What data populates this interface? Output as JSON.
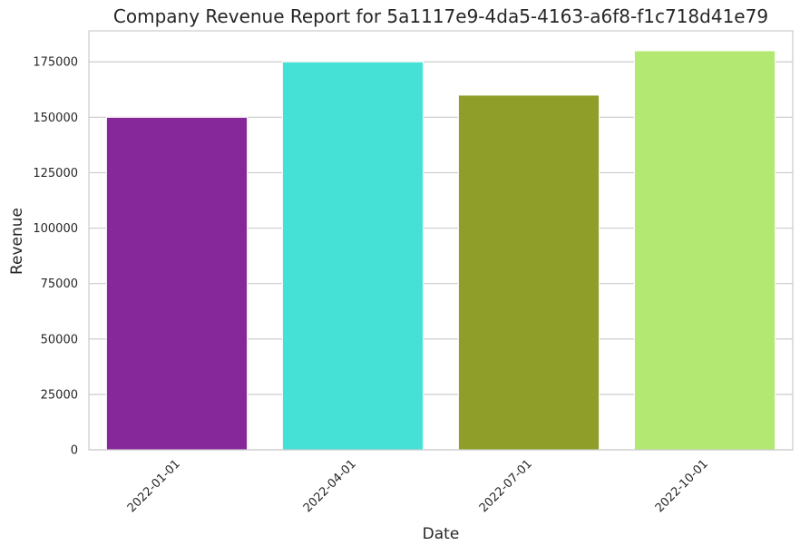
{
  "chart_data": {
    "type": "bar",
    "title": "Company Revenue Report for 5a1117e9-4da5-4163-a6f8-f1c718d41e79",
    "xlabel": "Date",
    "ylabel": "Revenue",
    "categories": [
      "2022-01-01",
      "2022-04-01",
      "2022-07-01",
      "2022-10-01"
    ],
    "values": [
      150000,
      175000,
      160000,
      180000
    ],
    "colors": [
      "#87289a",
      "#45e0d6",
      "#8f9d29",
      "#b3e872"
    ],
    "ylim": [
      0,
      189000
    ],
    "yticks": [
      0,
      25000,
      50000,
      75000,
      100000,
      125000,
      150000,
      175000
    ],
    "grid": "y-axis",
    "x_tick_rotation": -45
  }
}
